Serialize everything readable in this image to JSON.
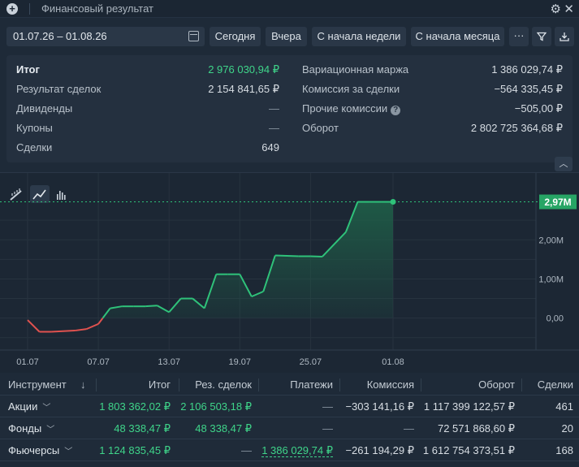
{
  "window": {
    "title": "Финансовый результат"
  },
  "toolbar": {
    "date_range": "01.07.26 – 01.08.26",
    "today": "Сегодня",
    "yesterday": "Вчера",
    "week_start": "С начала недели",
    "month_start": "С начала месяца",
    "more": "···"
  },
  "summary": {
    "left": [
      {
        "label": "Итог",
        "value": "2 976 030,94 ₽"
      },
      {
        "label": "Результат сделок",
        "value": "2 154 841,65 ₽"
      },
      {
        "label": "Дивиденды",
        "value": "—"
      },
      {
        "label": "Купоны",
        "value": "—"
      },
      {
        "label": "Сделки",
        "value": "649"
      }
    ],
    "right": [
      {
        "label": "Вариационная маржа",
        "value": "1 386 029,74 ₽"
      },
      {
        "label": "Комиссия за сделки",
        "value": "−564 335,45 ₽"
      },
      {
        "label": "Прочие комиссии",
        "value": "−505,00 ₽"
      },
      {
        "label": "Оборот",
        "value": "2 802 725 364,68 ₽"
      }
    ]
  },
  "chart_data": {
    "type": "line",
    "x_tick_labels": [
      "01.07",
      "07.07",
      "13.07",
      "19.07",
      "25.07",
      "01.08"
    ],
    "y_tick_labels": [
      "0,00",
      "1,00M",
      "2,00M"
    ],
    "current_value_label": "2,97M",
    "ylim": [
      -0.9,
      3.5
    ],
    "y_unit": "M",
    "colors": {
      "positive": "#2fc27a",
      "negative": "#e0524f",
      "area": "#1f5f48"
    },
    "x": [
      "2026-07-01",
      "2026-07-02",
      "2026-07-03",
      "2026-07-05",
      "2026-07-06",
      "2026-07-07",
      "2026-07-08",
      "2026-07-09",
      "2026-07-10",
      "2026-07-11",
      "2026-07-12",
      "2026-07-13",
      "2026-07-14",
      "2026-07-15",
      "2026-07-16",
      "2026-07-17",
      "2026-07-18",
      "2026-07-19",
      "2026-07-20",
      "2026-07-21",
      "2026-07-22",
      "2026-07-24",
      "2026-07-25",
      "2026-07-26",
      "2026-07-28",
      "2026-07-29",
      "2026-07-30",
      "2026-07-31",
      "2026-08-01"
    ],
    "values": [
      -0.05,
      -0.35,
      -0.35,
      -0.32,
      -0.28,
      -0.15,
      0.25,
      0.3,
      0.3,
      0.3,
      0.32,
      0.15,
      0.5,
      0.5,
      0.25,
      1.12,
      1.12,
      1.12,
      0.55,
      0.68,
      1.6,
      1.58,
      1.58,
      1.57,
      2.2,
      2.97,
      2.97,
      2.97,
      2.97
    ]
  },
  "table": {
    "headers": [
      "Инструмент",
      "Итог",
      "Рез. сделок",
      "Платежи",
      "Комиссия",
      "Оборот",
      "Сделки"
    ],
    "sort_icon": "↓",
    "rows": [
      {
        "name": "Акции",
        "total": "1 803 362,02 ₽",
        "deals_result": "2 106 503,18 ₽",
        "payments": "—",
        "commission": "−303 141,16 ₽",
        "turnover": "1 117 399 122,57 ₽",
        "deals": "461"
      },
      {
        "name": "Фонды",
        "total": "48 338,47 ₽",
        "deals_result": "48 338,47 ₽",
        "payments": "—",
        "commission": "—",
        "turnover": "72 571 868,60 ₽",
        "deals": "20"
      },
      {
        "name": "Фьючерсы",
        "total": "1 124 835,45 ₽",
        "deals_result": "—",
        "payments": "1 386 029,74 ₽",
        "commission": "−261 194,29 ₽",
        "turnover": "1 612 754 373,51 ₽",
        "deals": "168"
      }
    ]
  },
  "icons": {
    "add": "add-icon",
    "settings": "gear-icon",
    "close": "close-icon",
    "calendar": "calendar-icon",
    "filter": "filter-icon",
    "download": "download-icon",
    "collapse": "chevron-up-icon"
  }
}
